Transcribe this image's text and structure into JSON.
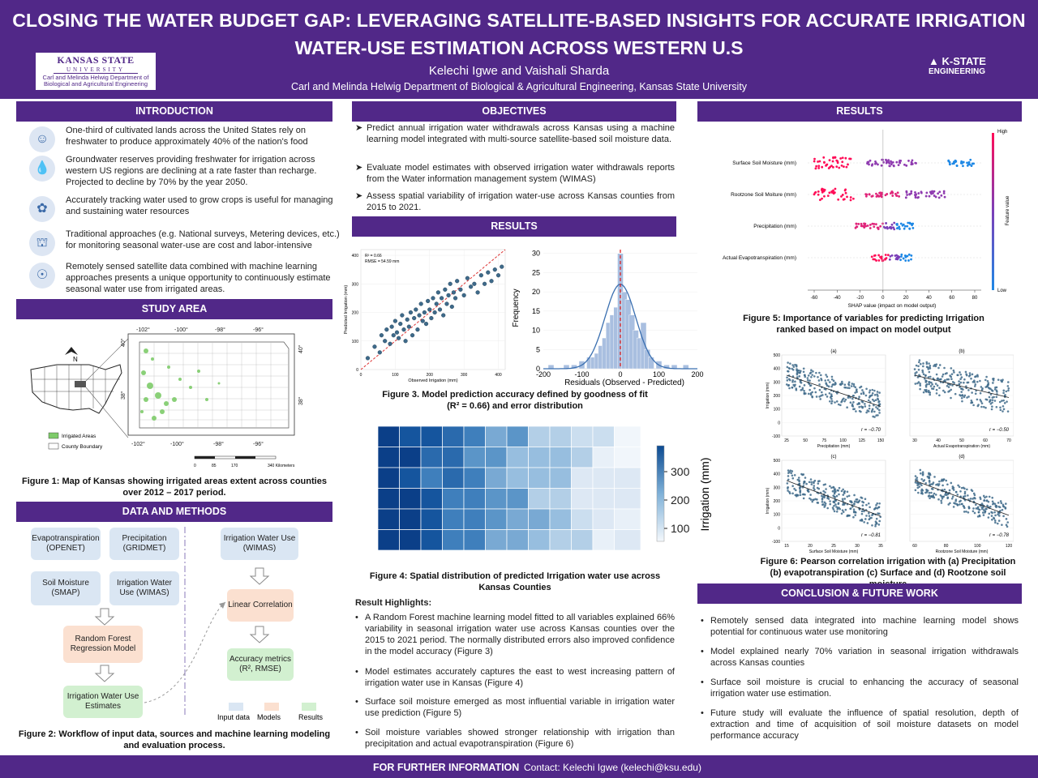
{
  "header": {
    "title_line1": "CLOSING THE WATER BUDGET GAP: LEVERAGING SATELLITE-BASED INSIGHTS FOR ACCURATE IRRIGATION",
    "title_line2": "WATER-USE ESTIMATION ACROSS WESTERN U.S",
    "authors": "Kelechi Igwe and Vaishali Sharda",
    "affiliation": "Carl and Melinda Helwig Department of Biological & Agricultural Engineering, Kansas State University",
    "logo_left_name": "KANSAS STATE",
    "logo_left_sub": "UNIVERSITY",
    "logo_left_dept": "Carl and Melinda Helwig Department of Biological and Agricultural Engineering",
    "logo_right_top": "K-STATE",
    "logo_right_bottom": "ENGINEERING"
  },
  "intro": {
    "heading": "INTRODUCTION",
    "items": [
      "One-third of cultivated lands across the United States rely on freshwater to produce approximately 40% of the nation's food",
      "Groundwater reserves providing freshwater for irrigation across western US regions are declining at a rate faster than recharge. Projected to decline by 70% by the year 2050.",
      "Accurately tracking water used to grow crops is useful for managing and sustaining water resources",
      "Traditional approaches (e.g. National surveys, Metering devices, etc.) for monitoring seasonal water-use are cost and labor-intensive",
      "Remotely sensed satellite data combined with machine learning approaches presents a unique opportunity to continuously estimate seasonal water use from irrigated areas."
    ]
  },
  "study": {
    "heading": "STUDY AREA",
    "legend_irrigated": "Irrigated Areas",
    "legend_county": "County Boundary",
    "lon_labels": [
      "-102°",
      "-100°",
      "-98°",
      "-96°"
    ],
    "lat_labels": [
      "40°",
      "38°"
    ],
    "scale": [
      "0",
      "85",
      "170",
      "340 Kilometers"
    ],
    "north": "N",
    "caption": "Figure 1: Map of Kansas showing irrigated areas extent across counties over 2012 – 2017 period."
  },
  "methods": {
    "heading": "DATA AND METHODS",
    "boxes": {
      "et": "Evapotranspiration (OPENET)",
      "precip": "Precipitation (GRIDMET)",
      "soil": "Soil Moisture (SMAP)",
      "wimas1": "Irrigation Water Use (WIMAS)",
      "rf": "Random Forest Regression Model",
      "iwue": "Irrigation Water Use Estimates",
      "wimas2": "Irrigation Water Use (WIMAS)",
      "lin": "Linear Correlation",
      "acc": "Accuracy metrics (R², RMSE)"
    },
    "legend": [
      "Input data",
      "Models",
      "Results"
    ],
    "caption": "Figure 2: Workflow of input data, sources and machine learning modeling and evaluation process."
  },
  "objectives": {
    "heading": "OBJECTIVES",
    "items": [
      "Predict annual irrigation water withdrawals across Kansas using a machine learning model integrated with multi-source satellite-based soil moisture data.",
      "Evaluate model estimates with observed irrigation water withdrawals reports from the Water information management system (WIMAS)",
      "Assess spatial variability of irrigation water-use across Kansas counties from 2015 to 2021."
    ]
  },
  "results_mid": {
    "heading": "RESULTS",
    "fig3_caption_1": "Figure 3. Model prediction accuracy defined by goodness of fit",
    "fig3_caption_2": "(R² = 0.66) and error distribution",
    "fig4_caption": "Figure 4: Spatial distribution of predicted Irrigation water use across Kansas Counties",
    "highlights_title": "Result Highlights:",
    "highlights": [
      "A Random Forest machine learning model fitted to all variables explained 66% variability in seasonal irrigation water use across Kansas counties over the 2015 to 2021 period. The normally distributed errors also improved confidence in the model accuracy (Figure 3)",
      "Model estimates accurately captures the east to west increasing pattern of irrigation water use in Kansas (Figure 4)",
      "Surface soil moisture emerged as most influential variable in irrigation water use prediction (Figure 5)",
      "Soil moisture variables showed stronger relationship with irrigation than precipitation and actual evapotranspiration (Figure 6)"
    ]
  },
  "results_right": {
    "heading": "RESULTS",
    "fig5_caption": "Figure 5: Importance of variables for predicting Irrigation ranked based on impact on model output",
    "fig6_caption": "Figure 6: Pearson correlation irrigation with (a) Precipitation (b) evapotranspiration (c) Surface and (d) Rootzone soil moisture"
  },
  "conclusion": {
    "heading": "CONCLUSION & FUTURE WORK",
    "items": [
      "Remotely sensed data integrated into machine learning model shows potential for continuous water use monitoring",
      "Model explained nearly 70% variation in seasonal irrigation withdrawals across Kansas counties",
      "Surface soil moisture is crucial to enhancing the accuracy of seasonal irrigation water use estimation.",
      "Future study will evaluate the influence of spatial resolution, depth of extraction and time of acquisition of soil moisture datasets on model performance accuracy"
    ]
  },
  "footer": {
    "label": "FOR FURTHER INFORMATION",
    "contact": "Contact: Kelechi Igwe (kelechi@ksu.edu)"
  },
  "chart_data": [
    {
      "type": "scatter",
      "title": "",
      "xlabel": "Observed Irrigation (mm)",
      "ylabel": "Predicted Irrigation (mm)",
      "xlim": [
        0,
        420
      ],
      "ylim": [
        0,
        420
      ],
      "xticks": [
        0,
        100,
        200,
        300,
        400
      ],
      "yticks": [
        0,
        100,
        200,
        300,
        400
      ],
      "annotation": [
        "R² = 0.66",
        "RMSE = 54.59 mm"
      ],
      "points": [
        [
          20,
          40
        ],
        [
          40,
          80
        ],
        [
          55,
          60
        ],
        [
          60,
          120
        ],
        [
          70,
          100
        ],
        [
          75,
          140
        ],
        [
          85,
          90
        ],
        [
          90,
          150
        ],
        [
          95,
          120
        ],
        [
          100,
          170
        ],
        [
          105,
          130
        ],
        [
          110,
          110
        ],
        [
          115,
          160
        ],
        [
          120,
          190
        ],
        [
          125,
          140
        ],
        [
          130,
          100
        ],
        [
          135,
          175
        ],
        [
          140,
          150
        ],
        [
          145,
          200
        ],
        [
          150,
          120
        ],
        [
          155,
          180
        ],
        [
          160,
          210
        ],
        [
          165,
          140
        ],
        [
          170,
          190
        ],
        [
          175,
          230
        ],
        [
          180,
          170
        ],
        [
          185,
          200
        ],
        [
          190,
          160
        ],
        [
          195,
          240
        ],
        [
          200,
          210
        ],
        [
          205,
          180
        ],
        [
          210,
          250
        ],
        [
          215,
          200
        ],
        [
          220,
          230
        ],
        [
          225,
          270
        ],
        [
          230,
          210
        ],
        [
          235,
          250
        ],
        [
          240,
          190
        ],
        [
          245,
          280
        ],
        [
          250,
          230
        ],
        [
          255,
          260
        ],
        [
          260,
          300
        ],
        [
          265,
          220
        ],
        [
          270,
          270
        ],
        [
          275,
          250
        ],
        [
          280,
          310
        ],
        [
          290,
          280
        ],
        [
          300,
          260
        ],
        [
          310,
          320
        ],
        [
          320,
          290
        ],
        [
          330,
          300
        ],
        [
          340,
          270
        ],
        [
          350,
          330
        ],
        [
          360,
          300
        ],
        [
          370,
          340
        ],
        [
          380,
          310
        ],
        [
          390,
          350
        ],
        [
          400,
          330
        ],
        [
          410,
          360
        ]
      ]
    },
    {
      "type": "bar",
      "title": "",
      "xlabel": "Residuals (Observed - Predicted)",
      "ylabel": "Frequency",
      "xlim": [
        -200,
        200
      ],
      "ylim": [
        0,
        31
      ],
      "xticks": [
        -200,
        -100,
        0,
        100,
        200
      ],
      "yticks": [
        0,
        5,
        10,
        15,
        20,
        25,
        30
      ],
      "bin_centers": [
        -180,
        -160,
        -140,
        -120,
        -100,
        -80,
        -70,
        -60,
        -50,
        -40,
        -30,
        -20,
        -10,
        0,
        10,
        20,
        30,
        40,
        50,
        60,
        70,
        80,
        100,
        120,
        140,
        170
      ],
      "values": [
        1,
        0,
        1,
        1,
        2,
        3,
        3,
        4,
        6,
        8,
        12,
        14,
        16,
        30,
        20,
        18,
        14,
        10,
        8,
        12,
        5,
        3,
        2,
        1,
        1,
        1
      ]
    },
    {
      "type": "heatmap",
      "title": "",
      "colorbar_label": "Irrigation (mm)",
      "colorbar_ticks": [
        100,
        200,
        300
      ]
    },
    {
      "type": "scatter",
      "title": "",
      "xlabel": "SHAP value (impact on model output)",
      "features": [
        "Surface Soil Moisture (mm)",
        "Rootzone Soil Moiture (mm)",
        "Precipitation (mm)",
        "Actual Evapotranspiration (mm)"
      ],
      "xticks": [
        -60,
        -40,
        -20,
        0,
        20,
        40,
        60,
        80
      ],
      "colorbar_label": "Feature value",
      "colorbar_ticks": [
        "High",
        "Low"
      ]
    },
    {
      "type": "scatter",
      "title": "",
      "panels": [
        {
          "id": "(a)",
          "xlabel": "Precipitation (mm)",
          "ylabel": "Irrigation (mm)",
          "r": "r = −0.70",
          "xticks": [
            25,
            50,
            75,
            100,
            125,
            150
          ]
        },
        {
          "id": "(b)",
          "xlabel": "Actual Evapotranspiration (mm)",
          "ylabel": "",
          "r": "r = −0.50",
          "xticks": [
            30,
            40,
            50,
            60,
            70
          ]
        },
        {
          "id": "(c)",
          "xlabel": "Surface Soil Moisture (mm)",
          "ylabel": "Irrigation (mm)",
          "r": "r = −0.81",
          "xticks": [
            15,
            20,
            25,
            30,
            35
          ]
        },
        {
          "id": "(d)",
          "xlabel": "Rootzone Soil Moisture (mm)",
          "ylabel": "",
          "r": "r = −0.78",
          "xticks": [
            60,
            80,
            100,
            120
          ]
        }
      ],
      "yticks": [
        -100,
        0,
        100,
        200,
        300,
        400,
        500
      ]
    }
  ]
}
